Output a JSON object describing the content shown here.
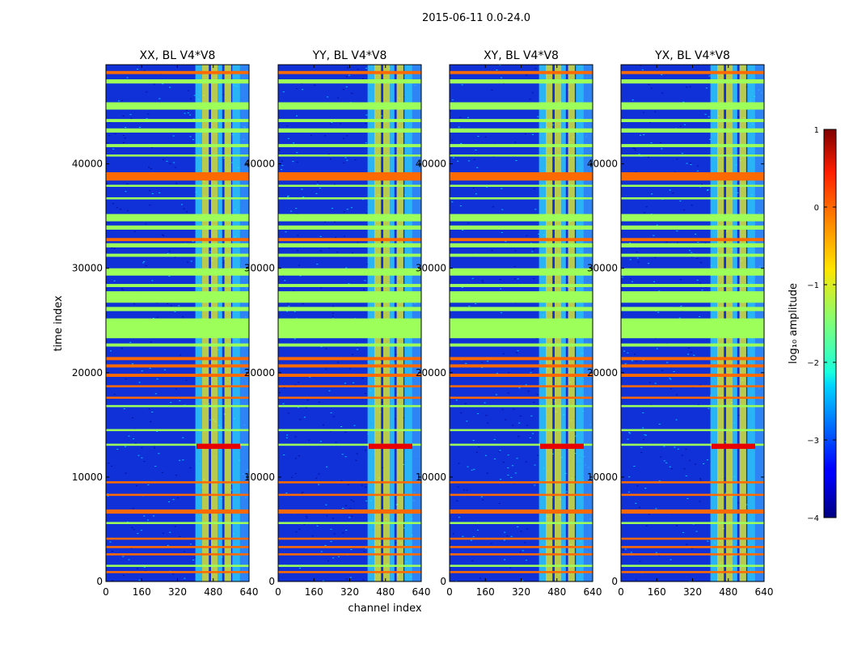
{
  "suptitle": "2015-06-11 0.0-24.0",
  "colorbar": {
    "label": "log₁₀ amplitude",
    "ticks": [
      1,
      0,
      -1,
      -2,
      -3,
      -4
    ],
    "range": [
      -4,
      1
    ]
  },
  "chart_data": [
    {
      "type": "heatmap",
      "title": "XX, BL V4*V8",
      "xlabel": "",
      "ylabel": "time index",
      "xticks": [
        0,
        160,
        320,
        480,
        640
      ],
      "yticks": [
        0,
        10000,
        20000,
        30000,
        40000
      ],
      "xlim": [
        0,
        640
      ],
      "ylim": [
        0,
        49500
      ]
    },
    {
      "type": "heatmap",
      "title": "YY, BL V4*V8",
      "xlabel": "channel index",
      "ylabel": "",
      "xticks": [
        0,
        160,
        320,
        480,
        640
      ],
      "yticks": [
        0,
        10000,
        20000,
        30000,
        40000
      ],
      "xlim": [
        0,
        640
      ],
      "ylim": [
        0,
        49500
      ]
    },
    {
      "type": "heatmap",
      "title": "XY, BL V4*V8",
      "xlabel": "",
      "ylabel": "",
      "xticks": [
        0,
        160,
        320,
        480,
        640
      ],
      "yticks": [
        0,
        10000,
        20000,
        30000,
        40000
      ],
      "xlim": [
        0,
        640
      ],
      "ylim": [
        0,
        49500
      ]
    },
    {
      "type": "heatmap",
      "title": "YX, BL V4*V8",
      "xlabel": "",
      "ylabel": "",
      "xticks": [
        0,
        160,
        320,
        480,
        640
      ],
      "yticks": [
        0,
        10000,
        20000,
        30000,
        40000
      ],
      "xlim": [
        0,
        640
      ],
      "ylim": [
        0,
        49500
      ]
    }
  ]
}
